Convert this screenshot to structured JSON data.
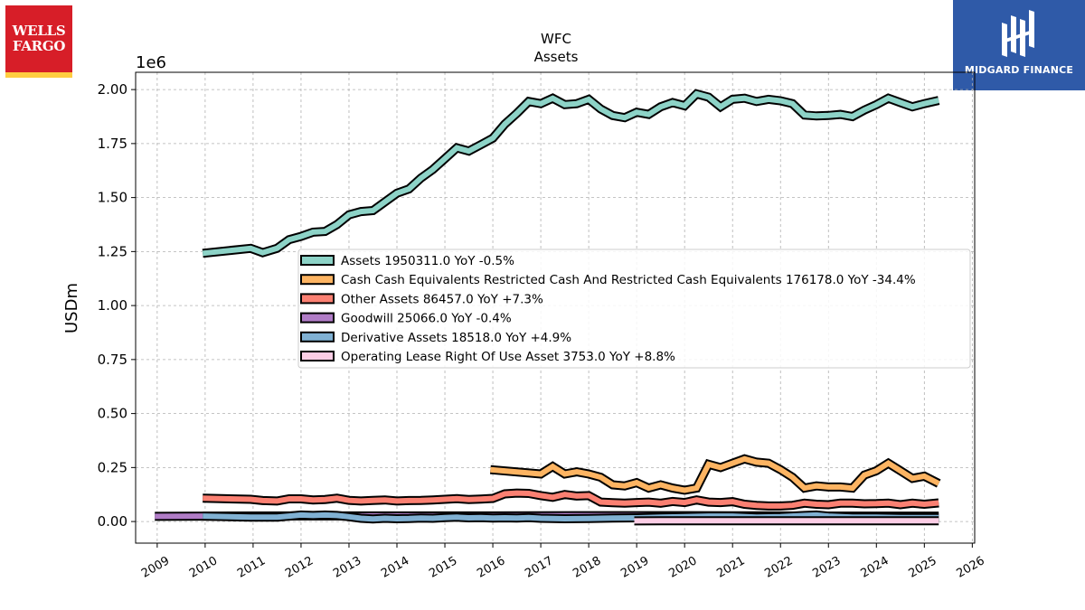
{
  "logos": {
    "left": {
      "name": "Wells Fargo",
      "line1": "WELLS",
      "line2": "FARGO"
    },
    "right": {
      "name": "Midgard Finance",
      "text": "MIDGARD FINANCE"
    }
  },
  "colors": {
    "Assets": "#8dd3c7",
    "Cash": "#fdb462",
    "Other": "#fb8072",
    "Goodwill": "#b07cc6",
    "Derivative": "#80b1d3",
    "Lease": "#fccde5"
  },
  "chart_data": {
    "type": "line",
    "title": "WFC",
    "subtitle": "Assets",
    "ylabel": "USDm",
    "y_multiplier": "1e6",
    "xlim": [
      2008.55,
      2026.05
    ],
    "ylim": [
      -0.1,
      2.08
    ],
    "y_ticks": [
      "0.00",
      "0.25",
      "0.50",
      "0.75",
      "1.00",
      "1.25",
      "1.50",
      "1.75",
      "2.00"
    ],
    "x_ticks": [
      "2009",
      "2010",
      "2011",
      "2012",
      "2013",
      "2014",
      "2015",
      "2016",
      "2017",
      "2018",
      "2019",
      "2020",
      "2021",
      "2022",
      "2023",
      "2024",
      "2025",
      "2026"
    ],
    "grid": true,
    "legend_position": "center-right",
    "series": [
      {
        "key": "Assets",
        "legend": "Assets  1950311.0 YoY -0.5%",
        "x": [
          2009.95,
          2010.95,
          2011.2,
          2011.5,
          2011.75,
          2012.0,
          2012.25,
          2012.5,
          2012.75,
          2013.0,
          2013.25,
          2013.5,
          2013.75,
          2014.0,
          2014.25,
          2014.5,
          2014.75,
          2015.0,
          2015.25,
          2015.5,
          2015.75,
          2016.0,
          2016.25,
          2016.5,
          2016.75,
          2017.0,
          2017.25,
          2017.5,
          2017.75,
          2018.0,
          2018.25,
          2018.5,
          2018.75,
          2019.0,
          2019.25,
          2019.5,
          2019.75,
          2020.0,
          2020.25,
          2020.5,
          2020.75,
          2021.0,
          2021.25,
          2021.5,
          2021.75,
          2022.0,
          2022.25,
          2022.5,
          2022.75,
          2023.0,
          2023.25,
          2023.5,
          2023.75,
          2024.0,
          2024.25,
          2024.5,
          2024.75,
          2025.0,
          2025.3
        ],
        "values": [
          1.242,
          1.265,
          1.245,
          1.265,
          1.305,
          1.32,
          1.34,
          1.343,
          1.375,
          1.42,
          1.435,
          1.44,
          1.48,
          1.52,
          1.54,
          1.59,
          1.63,
          1.68,
          1.73,
          1.715,
          1.745,
          1.775,
          1.84,
          1.89,
          1.945,
          1.935,
          1.96,
          1.93,
          1.935,
          1.955,
          1.91,
          1.88,
          1.87,
          1.895,
          1.885,
          1.92,
          1.94,
          1.925,
          1.98,
          1.965,
          1.92,
          1.955,
          1.96,
          1.945,
          1.955,
          1.948,
          1.935,
          1.882,
          1.878,
          1.88,
          1.885,
          1.875,
          1.905,
          1.93,
          1.96,
          1.94,
          1.92,
          1.935,
          1.95
        ]
      },
      {
        "key": "Cash",
        "legend": "Cash Cash Equivalents Restricted Cash And Restricted Cash Equivalents  176178.0 YoY -34.4%",
        "x": [
          2015.95,
          2017.0,
          2017.25,
          2017.5,
          2017.75,
          2018.0,
          2018.25,
          2018.5,
          2018.75,
          2019.0,
          2019.25,
          2019.5,
          2019.75,
          2020.0,
          2020.25,
          2020.5,
          2020.75,
          2021.0,
          2021.25,
          2021.5,
          2021.75,
          2022.0,
          2022.25,
          2022.5,
          2022.75,
          2023.0,
          2023.25,
          2023.5,
          2023.75,
          2024.0,
          2024.25,
          2024.5,
          2024.75,
          2025.0,
          2025.3
        ],
        "values": [
          0.24,
          0.22,
          0.255,
          0.22,
          0.23,
          0.22,
          0.205,
          0.17,
          0.165,
          0.18,
          0.155,
          0.17,
          0.155,
          0.145,
          0.155,
          0.265,
          0.25,
          0.27,
          0.29,
          0.275,
          0.27,
          0.24,
          0.205,
          0.155,
          0.165,
          0.16,
          0.16,
          0.155,
          0.215,
          0.235,
          0.27,
          0.235,
          0.2,
          0.21,
          0.176
        ]
      },
      {
        "key": "Other",
        "legend": "Other Assets  86457.0 YoY +7.3%",
        "x": [
          2009.95,
          2010.95,
          2011.2,
          2011.5,
          2011.75,
          2012.0,
          2012.25,
          2012.5,
          2012.75,
          2013.0,
          2013.25,
          2013.5,
          2013.75,
          2014.0,
          2014.25,
          2014.5,
          2014.75,
          2015.0,
          2015.25,
          2015.5,
          2015.75,
          2016.0,
          2016.25,
          2016.5,
          2016.75,
          2017.0,
          2017.25,
          2017.5,
          2017.75,
          2018.0,
          2018.25,
          2018.5,
          2018.75,
          2019.0,
          2019.25,
          2019.5,
          2019.75,
          2020.0,
          2020.25,
          2020.5,
          2020.75,
          2021.0,
          2021.25,
          2021.5,
          2021.75,
          2022.0,
          2022.25,
          2022.5,
          2022.75,
          2023.0,
          2023.25,
          2023.5,
          2023.75,
          2024.0,
          2024.25,
          2024.5,
          2024.75,
          2025.0,
          2025.3
        ],
        "values": [
          0.108,
          0.103,
          0.097,
          0.095,
          0.105,
          0.105,
          0.1,
          0.102,
          0.108,
          0.098,
          0.095,
          0.098,
          0.1,
          0.095,
          0.097,
          0.098,
          0.1,
          0.103,
          0.106,
          0.102,
          0.104,
          0.107,
          0.128,
          0.132,
          0.13,
          0.12,
          0.112,
          0.125,
          0.118,
          0.12,
          0.09,
          0.087,
          0.085,
          0.088,
          0.09,
          0.085,
          0.093,
          0.088,
          0.1,
          0.09,
          0.088,
          0.092,
          0.08,
          0.075,
          0.072,
          0.072,
          0.075,
          0.085,
          0.08,
          0.078,
          0.085,
          0.085,
          0.082,
          0.083,
          0.085,
          0.078,
          0.085,
          0.08,
          0.086
        ]
      },
      {
        "key": "Goodwill",
        "legend": "Goodwill  25066.0 YoY -0.4%",
        "x": [
          2008.95,
          2010.0,
          2012.0,
          2014.0,
          2016.0,
          2018.0,
          2020.0,
          2022.0,
          2024.0,
          2025.3
        ],
        "values": [
          0.024,
          0.025,
          0.026,
          0.026,
          0.026,
          0.027,
          0.027,
          0.026,
          0.025,
          0.025
        ]
      },
      {
        "key": "Derivative",
        "legend": "Derivative Assets  18518.0 YoY +4.9%",
        "x": [
          2009.95,
          2010.95,
          2011.5,
          2011.75,
          2012.0,
          2012.25,
          2012.5,
          2012.75,
          2013.0,
          2013.25,
          2013.5,
          2013.75,
          2014.0,
          2014.25,
          2014.5,
          2014.75,
          2015.0,
          2015.25,
          2015.5,
          2015.75,
          2016.0,
          2016.25,
          2016.5,
          2016.75,
          2017.0,
          2017.5,
          2018.0,
          2018.5,
          2019.0,
          2019.5,
          2020.0,
          2020.5,
          2021.0,
          2021.5,
          2022.0,
          2022.5,
          2022.75,
          2023.0,
          2023.5,
          2024.0,
          2024.5,
          2025.0,
          2025.3
        ],
        "values": [
          0.025,
          0.02,
          0.02,
          0.025,
          0.03,
          0.028,
          0.03,
          0.028,
          0.022,
          0.015,
          0.012,
          0.015,
          0.013,
          0.014,
          0.016,
          0.015,
          0.018,
          0.02,
          0.017,
          0.018,
          0.016,
          0.017,
          0.016,
          0.018,
          0.015,
          0.013,
          0.014,
          0.016,
          0.017,
          0.02,
          0.022,
          0.025,
          0.025,
          0.02,
          0.022,
          0.028,
          0.03,
          0.025,
          0.02,
          0.02,
          0.018,
          0.018,
          0.0185
        ]
      },
      {
        "key": "Lease",
        "legend": "Operating Lease Right Of Use Asset  3753.0 YoY +8.8%",
        "x": [
          2018.95,
          2019.5,
          2020.0,
          2021.0,
          2022.0,
          2023.0,
          2024.0,
          2025.3
        ],
        "values": [
          0.003,
          0.0035,
          0.0035,
          0.0035,
          0.0035,
          0.0034,
          0.0035,
          0.0038
        ]
      }
    ]
  }
}
